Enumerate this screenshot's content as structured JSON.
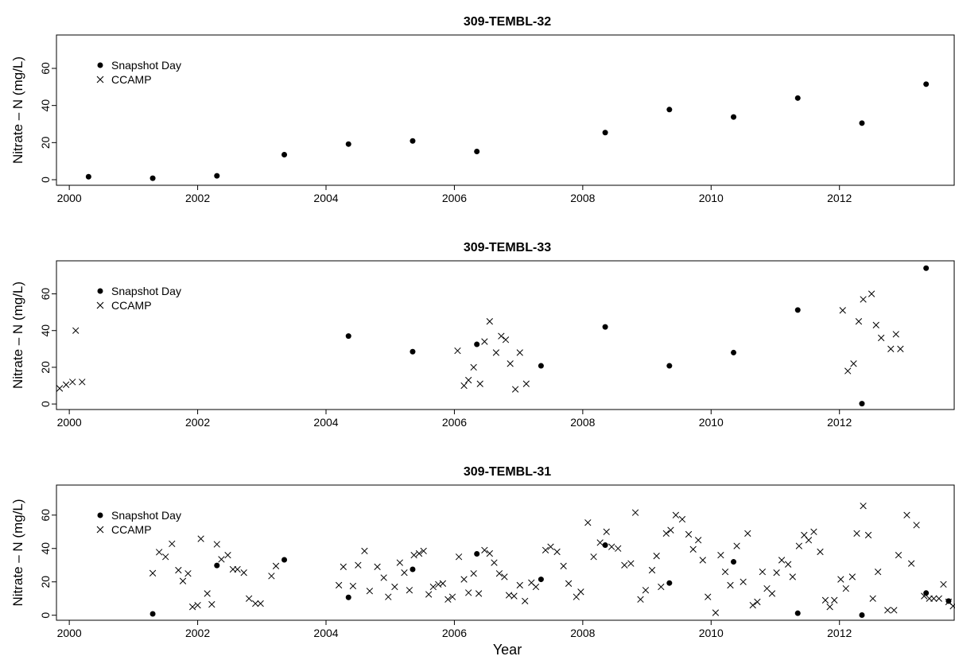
{
  "figure": {
    "xlabel": "Year",
    "ylabel": "Nitrate – N  (mg/L)"
  },
  "legend": {
    "items": [
      {
        "label": "Snapshot Day",
        "marker": "filled-circle"
      },
      {
        "label": "CCAMP",
        "marker": "x-cross"
      }
    ]
  },
  "chart_data": [
    {
      "type": "scatter",
      "title": "309-TEMBL-32",
      "xlabel": "",
      "ylabel": "Nitrate – N  (mg/L)",
      "xlim": [
        1999.8,
        2013.8
      ],
      "ylim": [
        -3,
        78
      ],
      "xticks": [
        2000,
        2002,
        2004,
        2006,
        2008,
        2010,
        2012
      ],
      "yticks": [
        0,
        20,
        40,
        60
      ],
      "legend": "top-left",
      "series": [
        {
          "name": "Snapshot Day",
          "marker": "filled-circle",
          "points": [
            [
              2000.3,
              1.6
            ],
            [
              2001.3,
              0.8
            ],
            [
              2002.3,
              2.1
            ],
            [
              2003.35,
              13.5
            ],
            [
              2004.35,
              19.2
            ],
            [
              2005.35,
              20.9
            ],
            [
              2006.35,
              15.2
            ],
            [
              2008.35,
              25.4
            ],
            [
              2009.35,
              37.8
            ],
            [
              2010.35,
              33.8
            ],
            [
              2011.35,
              44.0
            ],
            [
              2012.35,
              30.5
            ],
            [
              2013.35,
              51.5
            ]
          ]
        },
        {
          "name": "CCAMP",
          "marker": "x-cross",
          "points": []
        }
      ]
    },
    {
      "type": "scatter",
      "title": "309-TEMBL-33",
      "xlabel": "",
      "ylabel": "Nitrate – N  (mg/L)",
      "xlim": [
        1999.8,
        2013.8
      ],
      "ylim": [
        -3,
        78
      ],
      "xticks": [
        2000,
        2002,
        2004,
        2006,
        2008,
        2010,
        2012
      ],
      "yticks": [
        0,
        20,
        40,
        60
      ],
      "legend": "top-left",
      "series": [
        {
          "name": "Snapshot Day",
          "marker": "filled-circle",
          "points": [
            [
              2004.35,
              37.0
            ],
            [
              2005.35,
              28.5
            ],
            [
              2006.35,
              32.5
            ],
            [
              2007.35,
              20.8
            ],
            [
              2008.35,
              42.0
            ],
            [
              2009.35,
              20.8
            ],
            [
              2010.35,
              28.0
            ],
            [
              2011.35,
              51.2
            ],
            [
              2012.35,
              0.2
            ],
            [
              2013.35,
              74.0
            ]
          ]
        },
        {
          "name": "CCAMP",
          "marker": "x-cross",
          "points": [
            [
              1999.85,
              8.5
            ],
            [
              1999.95,
              10.5
            ],
            [
              2000.05,
              12.0
            ],
            [
              2000.1,
              40.0
            ],
            [
              2000.2,
              12.0
            ],
            [
              2006.05,
              29.0
            ],
            [
              2006.15,
              10.0
            ],
            [
              2006.22,
              13.0
            ],
            [
              2006.3,
              20.0
            ],
            [
              2006.4,
              11.0
            ],
            [
              2006.47,
              34.0
            ],
            [
              2006.55,
              45.0
            ],
            [
              2006.65,
              28.0
            ],
            [
              2006.73,
              37.0
            ],
            [
              2006.8,
              35.0
            ],
            [
              2006.87,
              22.0
            ],
            [
              2006.95,
              8.0
            ],
            [
              2007.02,
              28.0
            ],
            [
              2007.12,
              11.0
            ],
            [
              2012.05,
              51.0
            ],
            [
              2012.13,
              18.0
            ],
            [
              2012.22,
              22.0
            ],
            [
              2012.3,
              45.0
            ],
            [
              2012.37,
              57.0
            ],
            [
              2012.5,
              60.0
            ],
            [
              2012.57,
              43.0
            ],
            [
              2012.65,
              36.0
            ],
            [
              2012.8,
              30.0
            ],
            [
              2012.88,
              38.0
            ],
            [
              2012.95,
              30.0
            ]
          ]
        }
      ]
    },
    {
      "type": "scatter",
      "title": "309-TEMBL-31",
      "xlabel": "Year",
      "ylabel": "Nitrate – N  (mg/L)",
      "xlim": [
        1999.8,
        2013.8
      ],
      "ylim": [
        -3,
        78
      ],
      "xticks": [
        2000,
        2002,
        2004,
        2006,
        2008,
        2010,
        2012
      ],
      "yticks": [
        0,
        20,
        40,
        60
      ],
      "legend": "top-left",
      "series": [
        {
          "name": "Snapshot Day",
          "marker": "filled-circle",
          "points": [
            [
              2001.3,
              0.8
            ],
            [
              2002.3,
              29.8
            ],
            [
              2003.35,
              33.2
            ],
            [
              2004.35,
              10.7
            ],
            [
              2005.35,
              27.5
            ],
            [
              2006.35,
              36.8
            ],
            [
              2007.35,
              21.5
            ],
            [
              2008.35,
              42.0
            ],
            [
              2009.35,
              19.3
            ],
            [
              2010.35,
              32.0
            ],
            [
              2011.35,
              1.2
            ],
            [
              2012.35,
              0.1
            ],
            [
              2013.35,
              13.3
            ],
            [
              2013.7,
              8.5
            ]
          ]
        },
        {
          "name": "CCAMP",
          "marker": "x-cross",
          "points": [
            [
              2001.3,
              25.2
            ],
            [
              2001.4,
              37.8
            ],
            [
              2001.5,
              35.0
            ],
            [
              2001.6,
              42.8
            ],
            [
              2001.7,
              27.0
            ],
            [
              2001.77,
              20.5
            ],
            [
              2001.85,
              25.0
            ],
            [
              2001.92,
              5.0
            ],
            [
              2002.0,
              6.0
            ],
            [
              2002.05,
              45.8
            ],
            [
              2002.15,
              13.0
            ],
            [
              2002.22,
              6.5
            ],
            [
              2002.3,
              42.5
            ],
            [
              2002.37,
              33.5
            ],
            [
              2002.47,
              36.0
            ],
            [
              2002.55,
              27.5
            ],
            [
              2002.62,
              27.5
            ],
            [
              2002.72,
              25.5
            ],
            [
              2002.8,
              10.0
            ],
            [
              2002.9,
              7.0
            ],
            [
              2002.98,
              7.0
            ],
            [
              2003.15,
              23.5
            ],
            [
              2003.22,
              29.5
            ],
            [
              2004.2,
              18.0
            ],
            [
              2004.27,
              29.0
            ],
            [
              2004.42,
              17.5
            ],
            [
              2004.5,
              30.0
            ],
            [
              2004.6,
              38.5
            ],
            [
              2004.68,
              14.5
            ],
            [
              2004.8,
              29.0
            ],
            [
              2004.9,
              22.5
            ],
            [
              2004.97,
              11.0
            ],
            [
              2005.07,
              17.0
            ],
            [
              2005.15,
              31.5
            ],
            [
              2005.22,
              25.5
            ],
            [
              2005.3,
              15.0
            ],
            [
              2005.37,
              36.0
            ],
            [
              2005.45,
              37.0
            ],
            [
              2005.52,
              38.5
            ],
            [
              2005.6,
              12.5
            ],
            [
              2005.67,
              17.0
            ],
            [
              2005.75,
              18.5
            ],
            [
              2005.82,
              19.0
            ],
            [
              2005.9,
              9.5
            ],
            [
              2005.97,
              11.0
            ],
            [
              2006.07,
              35.0
            ],
            [
              2006.15,
              21.5
            ],
            [
              2006.22,
              13.5
            ],
            [
              2006.3,
              25.0
            ],
            [
              2006.38,
              13.0
            ],
            [
              2006.47,
              39.0
            ],
            [
              2006.55,
              37.0
            ],
            [
              2006.62,
              31.5
            ],
            [
              2006.7,
              25.0
            ],
            [
              2006.78,
              23.0
            ],
            [
              2006.85,
              12.0
            ],
            [
              2006.93,
              11.5
            ],
            [
              2007.02,
              18.0
            ],
            [
              2007.1,
              8.5
            ],
            [
              2007.2,
              19.5
            ],
            [
              2007.27,
              17.0
            ],
            [
              2007.42,
              39.0
            ],
            [
              2007.5,
              41.0
            ],
            [
              2007.6,
              38.0
            ],
            [
              2007.7,
              29.5
            ],
            [
              2007.78,
              19.0
            ],
            [
              2007.9,
              11.0
            ],
            [
              2007.97,
              14.0
            ],
            [
              2008.08,
              55.5
            ],
            [
              2008.17,
              35.0
            ],
            [
              2008.27,
              43.5
            ],
            [
              2008.37,
              50.0
            ],
            [
              2008.45,
              41.0
            ],
            [
              2008.55,
              40.0
            ],
            [
              2008.65,
              30.0
            ],
            [
              2008.75,
              31.0
            ],
            [
              2008.82,
              61.5
            ],
            [
              2008.9,
              9.5
            ],
            [
              2008.98,
              15.0
            ],
            [
              2009.08,
              27.0
            ],
            [
              2009.15,
              35.5
            ],
            [
              2009.22,
              17.0
            ],
            [
              2009.3,
              49.0
            ],
            [
              2009.37,
              51.0
            ],
            [
              2009.45,
              60.0
            ],
            [
              2009.55,
              57.5
            ],
            [
              2009.65,
              48.5
            ],
            [
              2009.72,
              39.5
            ],
            [
              2009.8,
              45.0
            ],
            [
              2009.87,
              33.0
            ],
            [
              2009.95,
              11.0
            ],
            [
              2010.07,
              1.5
            ],
            [
              2010.15,
              36.0
            ],
            [
              2010.22,
              26.0
            ],
            [
              2010.3,
              18.0
            ],
            [
              2010.4,
              41.5
            ],
            [
              2010.5,
              20.0
            ],
            [
              2010.57,
              49.0
            ],
            [
              2010.65,
              6.0
            ],
            [
              2010.72,
              8.0
            ],
            [
              2010.8,
              26.0
            ],
            [
              2010.87,
              16.0
            ],
            [
              2010.95,
              13.0
            ],
            [
              2011.02,
              25.5
            ],
            [
              2011.1,
              33.0
            ],
            [
              2011.2,
              30.5
            ],
            [
              2011.27,
              23.0
            ],
            [
              2011.37,
              41.5
            ],
            [
              2011.45,
              48.0
            ],
            [
              2011.52,
              45.0
            ],
            [
              2011.6,
              50.0
            ],
            [
              2011.7,
              38.0
            ],
            [
              2011.78,
              9.0
            ],
            [
              2011.85,
              5.0
            ],
            [
              2011.92,
              9.0
            ],
            [
              2012.02,
              21.5
            ],
            [
              2012.1,
              16.0
            ],
            [
              2012.2,
              23.0
            ],
            [
              2012.27,
              49.0
            ],
            [
              2012.37,
              65.5
            ],
            [
              2012.45,
              48.0
            ],
            [
              2012.52,
              10.0
            ],
            [
              2012.6,
              26.0
            ],
            [
              2012.75,
              3.0
            ],
            [
              2012.85,
              3.0
            ],
            [
              2012.92,
              36.0
            ],
            [
              2013.05,
              60.0
            ],
            [
              2013.12,
              31.0
            ],
            [
              2013.2,
              54.0
            ],
            [
              2013.32,
              11.5
            ],
            [
              2013.4,
              10.0
            ],
            [
              2013.47,
              10.0
            ],
            [
              2013.55,
              10.0
            ],
            [
              2013.62,
              18.5
            ],
            [
              2013.7,
              8.0
            ],
            [
              2013.77,
              5.5
            ],
            [
              2013.84,
              3.5
            ]
          ]
        }
      ]
    }
  ]
}
